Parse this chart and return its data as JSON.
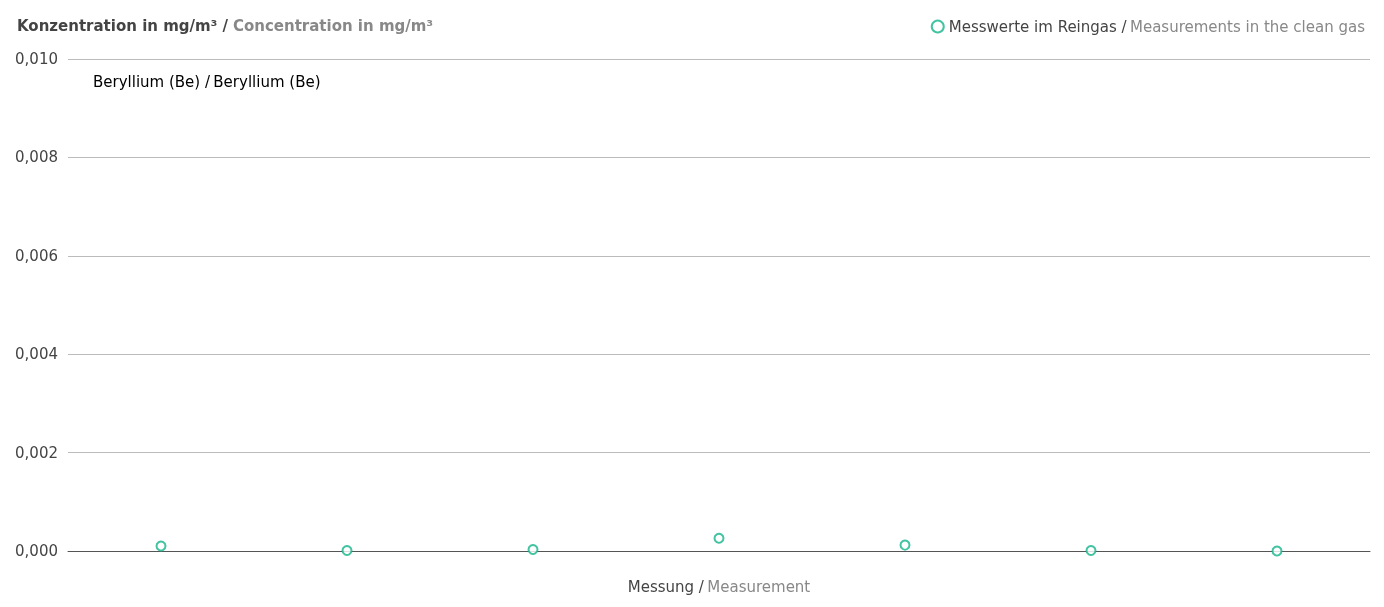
{
  "chart_data": {
    "type": "scatter",
    "title": "Konzentration in mg/m³ / Concentration in mg/m³",
    "subtitle": "Beryllium (Be) / Beryllium (Be)",
    "xlabel": "Messung / Measurement",
    "categories": [
      null,
      null,
      null,
      null,
      null,
      null,
      null
    ],
    "series": [
      {
        "name": "Messwerte im Reingas / Measurements in the clean gas",
        "color": "#14b48a",
        "values": [
          0.0001,
          1e-05,
          3e-05,
          0.00026,
          0.00012,
          1e-05,
          0.0
        ]
      }
    ],
    "ylim": [
      0,
      0.01
    ],
    "yticks": [
      {
        "value": 0,
        "label": "0,000"
      },
      {
        "value": 0.002,
        "label": "0,002"
      },
      {
        "value": 0.004,
        "label": "0,004"
      },
      {
        "value": 0.006,
        "label": "0,006"
      },
      {
        "value": 0.008,
        "label": "0,008"
      },
      {
        "value": 0.01,
        "label": "0,010"
      }
    ],
    "grid": "y",
    "legend": "top right",
    "marker": "circle"
  }
}
